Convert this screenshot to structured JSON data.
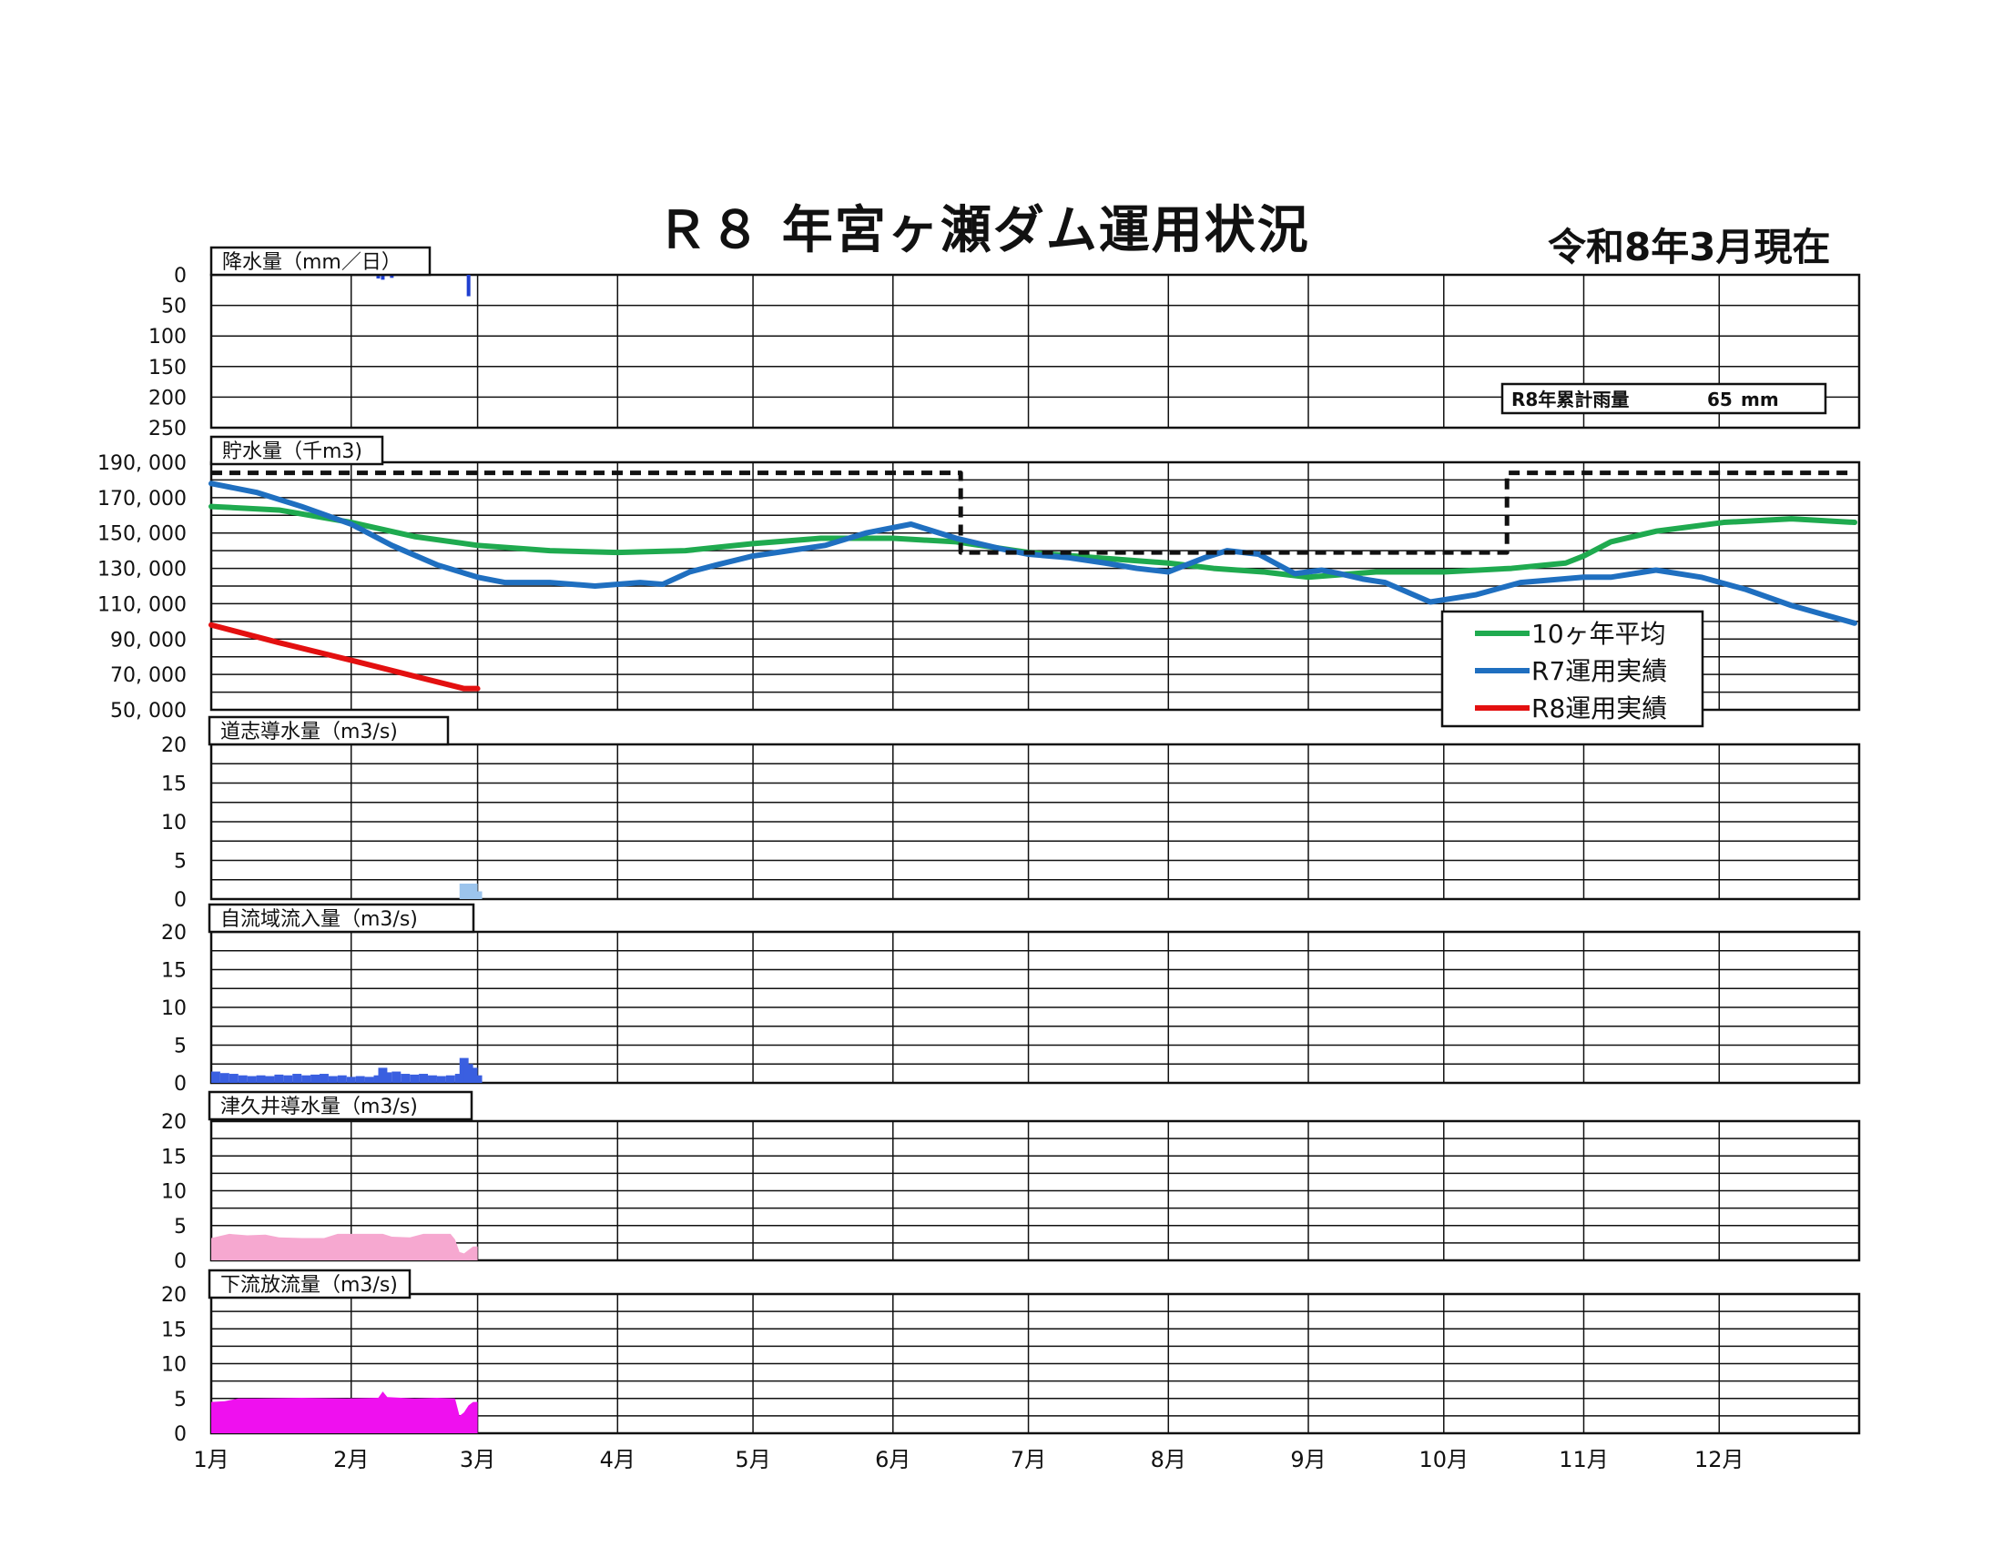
{
  "page": {
    "title": "Ｒ８ 年宮ヶ瀬ダム運用状況",
    "as_of": "令和8年3月現在"
  },
  "chart_data": [
    {
      "type": "bar",
      "title": "降水量（mm／日）",
      "ylim": [
        0,
        250
      ],
      "y_inverted": true,
      "yticks": [
        "0",
        "50",
        "100",
        "150",
        "200",
        "250"
      ],
      "cumulative_label": "R8年累計雨量",
      "cumulative_value": "65",
      "cumulative_unit": "mm",
      "color": "#1f3fd0",
      "x_month_day": [
        37,
        38,
        40,
        57
      ],
      "values": [
        6,
        8,
        5,
        35
      ]
    },
    {
      "type": "line",
      "title": "貯水量（千m3)",
      "ylim": [
        50000,
        190000
      ],
      "yticks": [
        "50, 000",
        "70, 000",
        "90, 000",
        "110, 000",
        "130, 000",
        "150, 000",
        "170, 000",
        "190, 000"
      ],
      "legend_position": "lower-right",
      "series": [
        {
          "name": "10ヶ年平均",
          "color": "#1faa4f",
          "x_day": [
            0,
            15,
            31,
            45,
            59,
            75,
            90,
            105,
            120,
            135,
            151,
            165,
            181,
            196,
            212,
            222,
            233,
            243,
            258,
            273,
            288,
            300,
            304,
            310,
            320,
            335,
            350,
            364
          ],
          "y": [
            165000,
            163000,
            156000,
            148000,
            143000,
            140000,
            139000,
            140000,
            144000,
            147000,
            147000,
            145000,
            139000,
            136000,
            133000,
            130000,
            128000,
            125000,
            128000,
            128000,
            130000,
            133000,
            137000,
            145000,
            151000,
            156000,
            158000,
            156000
          ]
        },
        {
          "name": "R7運用実績",
          "color": "#1f6fc0",
          "x_day": [
            0,
            10,
            20,
            31,
            40,
            50,
            59,
            65,
            75,
            85,
            95,
            100,
            106,
            112,
            120,
            128,
            136,
            145,
            155,
            165,
            175,
            181,
            190,
            198,
            205,
            212,
            220,
            225,
            232,
            240,
            246,
            250,
            255,
            260,
            270,
            280,
            290,
            304,
            310,
            320,
            330,
            340,
            350,
            364
          ],
          "y": [
            178000,
            173000,
            165000,
            155000,
            143000,
            132000,
            125000,
            122000,
            122000,
            120000,
            122000,
            121000,
            128000,
            132000,
            137000,
            140000,
            143000,
            150000,
            155000,
            147000,
            141000,
            138000,
            136000,
            133000,
            130000,
            128000,
            136000,
            140000,
            138000,
            127000,
            129000,
            127000,
            124000,
            122000,
            111000,
            115000,
            122000,
            125000,
            125000,
            129000,
            125000,
            118000,
            109000,
            99000
          ]
        },
        {
          "name": "R8運用実績",
          "color": "#e31010",
          "x_day": [
            0,
            15,
            31,
            45,
            56,
            59
          ],
          "y": [
            98000,
            88000,
            78000,
            69000,
            62000,
            62000
          ]
        },
        {
          "name": "",
          "dashed": true,
          "color": "#111111",
          "x_day": [
            0,
            166,
            166,
            287,
            287,
            364
          ],
          "y": [
            184000,
            184000,
            139000,
            139000,
            184000,
            184000
          ]
        }
      ]
    },
    {
      "type": "bar",
      "title": "道志導水量（m3/s)",
      "ylim": [
        0,
        20
      ],
      "yticks": [
        "0",
        "5",
        "10",
        "15",
        "20"
      ],
      "color": "#9cc4ec",
      "x_day": [
        55,
        56,
        57,
        58
      ],
      "values": [
        2,
        2,
        2,
        1
      ]
    },
    {
      "type": "bar",
      "title": "自流域流入量（m3/s)",
      "ylim": [
        0,
        20
      ],
      "yticks": [
        "0",
        "5",
        "10",
        "15",
        "20"
      ],
      "color": "#3a5fe0",
      "x_day": [
        0,
        2,
        4,
        6,
        8,
        10,
        12,
        14,
        16,
        18,
        20,
        22,
        24,
        26,
        28,
        30,
        32,
        34,
        36,
        37,
        38,
        40,
        42,
        44,
        46,
        48,
        50,
        52,
        54,
        55,
        56,
        57,
        58
      ],
      "values": [
        1.5,
        1.3,
        1.2,
        1.0,
        0.9,
        1.0,
        0.9,
        1.1,
        1.0,
        1.2,
        1.0,
        1.1,
        1.2,
        0.9,
        1.0,
        0.8,
        0.9,
        0.8,
        1.0,
        2.0,
        1.4,
        1.5,
        1.2,
        1.1,
        1.2,
        1.0,
        0.9,
        1.0,
        1.2,
        3.3,
        2.5,
        2.0,
        1.0
      ]
    },
    {
      "type": "area",
      "title": "津久井導水量（m3/s)",
      "ylim": [
        0,
        20
      ],
      "yticks": [
        "0",
        "5",
        "10",
        "15",
        "20"
      ],
      "color": "#f6a8d0",
      "x_day": [
        0,
        4,
        8,
        12,
        15,
        20,
        25,
        28,
        32,
        38,
        40,
        44,
        47,
        51,
        53,
        54,
        55,
        56,
        57,
        58,
        59
      ],
      "values": [
        3.2,
        3.8,
        3.6,
        3.7,
        3.3,
        3.2,
        3.2,
        3.8,
        3.8,
        3.8,
        3.4,
        3.3,
        3.8,
        3.8,
        3.8,
        3.0,
        1.2,
        1.0,
        1.5,
        2.0,
        2.0
      ]
    },
    {
      "type": "area",
      "title": "下流放流量（m3/s)",
      "ylim": [
        0,
        20
      ],
      "yticks": [
        "0",
        "5",
        "10",
        "15",
        "20"
      ],
      "color": "#ef10ef",
      "x_day": [
        0,
        3,
        6,
        10,
        20,
        30,
        37,
        38,
        39,
        45,
        50,
        54,
        55,
        56,
        57,
        58,
        59
      ],
      "values": [
        4.5,
        4.6,
        5.0,
        5.0,
        5.1,
        5.0,
        5.1,
        6.0,
        5.2,
        5.0,
        5.1,
        5.0,
        2.5,
        3.0,
        4.0,
        4.5,
        4.5
      ]
    }
  ],
  "x_axis": {
    "labels": [
      "1月",
      "2月",
      "3月",
      "4月",
      "5月",
      "6月",
      "7月",
      "8月",
      "9月",
      "10月",
      "11月",
      "12月"
    ]
  }
}
